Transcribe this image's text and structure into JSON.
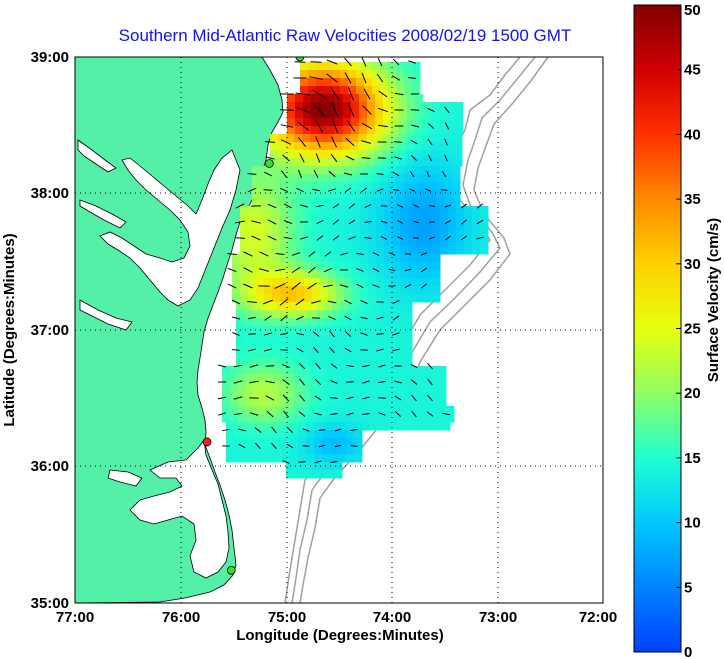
{
  "title": "Southern Mid-Atlantic Raw Velocities 2008/02/19 1500 GMT",
  "xlabel": "Longitude (Degrees:Minutes)",
  "ylabel": "Latitude (Degrees:Minutes)",
  "x_ticks": [
    "77:00",
    "76:00",
    "75:00",
    "74:00",
    "73:00",
    "72:00"
  ],
  "y_ticks": [
    "39:00",
    "38:00",
    "37:00",
    "36:00",
    "35:00"
  ],
  "colorbar": {
    "label": "Surface Velocity (cm/s)",
    "ticks": [
      "0",
      "5",
      "10",
      "15",
      "20",
      "25",
      "30",
      "35",
      "40",
      "45",
      "50"
    ],
    "range": [
      0,
      50
    ]
  },
  "colors": {
    "land": "#55f0a8",
    "title": "#1010ff",
    "station_green": "#33dd33",
    "station_red": "#ee2222"
  },
  "map": {
    "lon_range": [
      -77,
      -72
    ],
    "lat_range": [
      35,
      39
    ],
    "grid": "dotted"
  },
  "stations": [
    {
      "lon": -74.87,
      "lat": 39.0,
      "status": "active"
    },
    {
      "lon": -75.16,
      "lat": 38.22,
      "status": "active"
    },
    {
      "lon": -75.75,
      "lat": 36.18,
      "status": "offline"
    },
    {
      "lon": -75.52,
      "lat": 35.24,
      "status": "active"
    }
  ]
}
